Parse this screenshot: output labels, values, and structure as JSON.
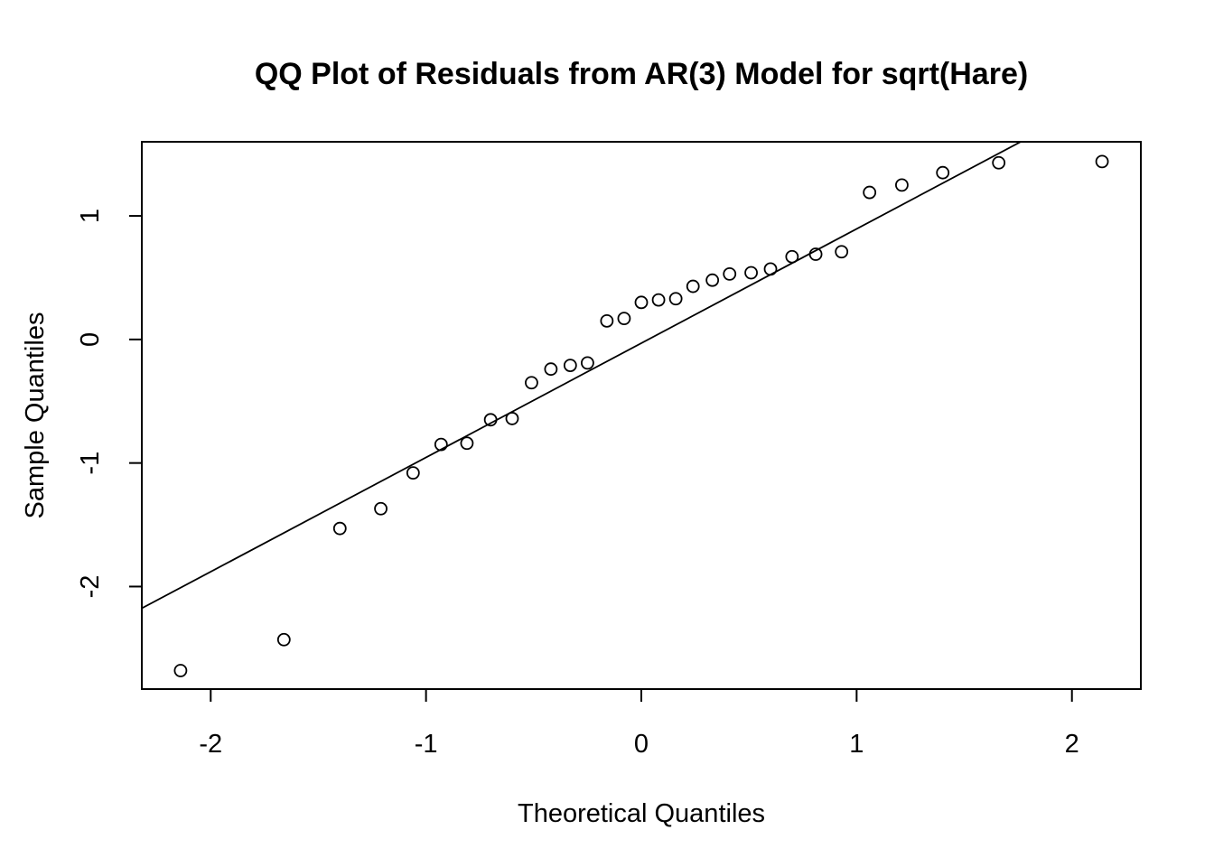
{
  "chart_data": {
    "type": "scatter",
    "title": "QQ Plot of Residuals from AR(3) Model for sqrt(Hare)",
    "xlabel": "Theoretical Quantiles",
    "ylabel": "Sample Quantiles",
    "xlim": [
      -2.32,
      2.32
    ],
    "ylim": [
      -2.83,
      1.6
    ],
    "x_ticks": [
      -2,
      -1,
      0,
      1,
      2
    ],
    "x_tick_labels": [
      "-2",
      "-1",
      "0",
      "1",
      "2"
    ],
    "y_ticks": [
      -2,
      -1,
      0,
      1
    ],
    "y_tick_labels": [
      "-2",
      "-1",
      "0",
      "1"
    ],
    "grid": false,
    "legend": "none",
    "marker": "open-circle",
    "colors": {
      "points": "#000000",
      "line": "#000000",
      "frame": "#000000",
      "background": "#ffffff"
    },
    "points": [
      {
        "x": -2.14,
        "y": -2.68
      },
      {
        "x": -1.66,
        "y": -2.43
      },
      {
        "x": -1.4,
        "y": -1.53
      },
      {
        "x": -1.21,
        "y": -1.37
      },
      {
        "x": -1.06,
        "y": -1.08
      },
      {
        "x": -0.93,
        "y": -0.85
      },
      {
        "x": -0.81,
        "y": -0.84
      },
      {
        "x": -0.7,
        "y": -0.65
      },
      {
        "x": -0.6,
        "y": -0.64
      },
      {
        "x": -0.51,
        "y": -0.35
      },
      {
        "x": -0.42,
        "y": -0.24
      },
      {
        "x": -0.33,
        "y": -0.21
      },
      {
        "x": -0.25,
        "y": -0.19
      },
      {
        "x": -0.16,
        "y": 0.15
      },
      {
        "x": -0.08,
        "y": 0.17
      },
      {
        "x": 0.0,
        "y": 0.3
      },
      {
        "x": 0.08,
        "y": 0.32
      },
      {
        "x": 0.16,
        "y": 0.33
      },
      {
        "x": 0.24,
        "y": 0.43
      },
      {
        "x": 0.33,
        "y": 0.48
      },
      {
        "x": 0.41,
        "y": 0.53
      },
      {
        "x": 0.51,
        "y": 0.54
      },
      {
        "x": 0.6,
        "y": 0.57
      },
      {
        "x": 0.7,
        "y": 0.67
      },
      {
        "x": 0.81,
        "y": 0.69
      },
      {
        "x": 0.93,
        "y": 0.71
      },
      {
        "x": 1.06,
        "y": 1.19
      },
      {
        "x": 1.21,
        "y": 1.25
      },
      {
        "x": 1.4,
        "y": 1.35
      },
      {
        "x": 1.66,
        "y": 1.43
      },
      {
        "x": 2.14,
        "y": 1.44
      }
    ],
    "reference_line": {
      "intercept": -0.03,
      "slope": 0.925
    }
  }
}
